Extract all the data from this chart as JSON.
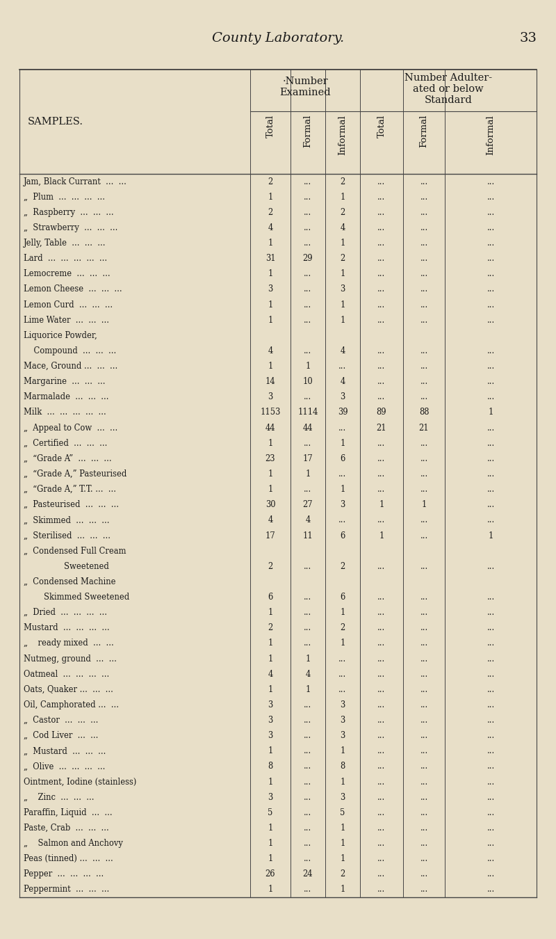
{
  "page_title": "County Laboratory.",
  "page_number": "33",
  "table_header": "SAMPLES.",
  "col_group1": "·Number\nExamined",
  "col_group2": "Number Adulter-\nated or below\nStandard",
  "col_headers": [
    "Total",
    "Formal",
    "Informal",
    "Total",
    "Formal",
    "Informal"
  ],
  "bg_color": "#e8dfc8",
  "rows": [
    [
      "Jam, Black Currant  ...  ...",
      "2",
      "...",
      "2",
      "...",
      "...",
      "..."
    ],
    [
      "„  Plum  ...  ...  ...  ...",
      "1",
      "...",
      "1",
      "...",
      "...",
      "..."
    ],
    [
      "„  Raspberry  ...  ...  ...",
      "2",
      "...",
      "2",
      "...",
      "...",
      "..."
    ],
    [
      "„  Strawberry  ...  ...  ...",
      "4",
      "...",
      "4",
      "...",
      "...",
      "..."
    ],
    [
      "Jelly, Table  ...  ...  ...",
      "1",
      "...",
      "1",
      "...",
      "...",
      "..."
    ],
    [
      "Lard  ...  ...  ...  ...  ...",
      "31",
      "29",
      "2",
      "...",
      "...",
      "..."
    ],
    [
      "Lemocreme  ...  ...  ...",
      "1",
      "...",
      "1",
      "...",
      "...",
      "..."
    ],
    [
      "Lemon Cheese  ...  ...  ...",
      "3",
      "...",
      "3",
      "...",
      "...",
      "..."
    ],
    [
      "Lemon Curd  ...  ...  ...",
      "1",
      "...",
      "1",
      "...",
      "...",
      "..."
    ],
    [
      "Lime Water  ...  ...  ...",
      "1",
      "...",
      "1",
      "...",
      "...",
      "..."
    ],
    [
      "Liquorice Powder,",
      "",
      "",
      "",
      "",
      "",
      ""
    ],
    [
      "    Compound  ...  ...  ...",
      "4",
      "...",
      "4",
      "...",
      "...",
      "..."
    ],
    [
      "Mace, Ground ...  ...  ...",
      "1",
      "1",
      "...",
      "...",
      "...",
      "..."
    ],
    [
      "Margarine  ...  ...  ...",
      "14",
      "10",
      "4",
      "...",
      "...",
      "..."
    ],
    [
      "Marmalade  ...  ...  ...",
      "3",
      "...",
      "3",
      "...",
      "...",
      "..."
    ],
    [
      "Milk  ...  ...  ...  ...  ...",
      "1153",
      "1114",
      "39",
      "89",
      "88",
      "1"
    ],
    [
      "„  Appeal to Cow  ...  ...",
      "44",
      "44",
      "...",
      "21",
      "21",
      "..."
    ],
    [
      "„  Certified  ...  ...  ...",
      "1",
      "...",
      "1",
      "...",
      "...",
      "..."
    ],
    [
      "„  “Grade A”  ...  ...  ...",
      "23",
      "17",
      "6",
      "...",
      "...",
      "..."
    ],
    [
      "„  “Grade A,” Pasteurised",
      "1",
      "1",
      "...",
      "...",
      "...",
      "..."
    ],
    [
      "„  “Grade A,” T.T. ...  ...",
      "1",
      "...",
      "1",
      "...",
      "...",
      "..."
    ],
    [
      "„  Pasteurised  ...  ...  ...",
      "30",
      "27",
      "3",
      "1",
      "1",
      "..."
    ],
    [
      "„  Skimmed  ...  ...  ...",
      "4",
      "4",
      "...",
      "...",
      "...",
      "..."
    ],
    [
      "„  Sterilised  ...  ...  ...",
      "17",
      "11",
      "6",
      "1",
      "...",
      "1"
    ],
    [
      "„  Condensed Full Cream",
      "",
      "",
      "",
      "",
      "",
      ""
    ],
    [
      "                Sweetened",
      "2",
      "...",
      "2",
      "...",
      "...",
      "..."
    ],
    [
      "„  Condensed Machine",
      "",
      "",
      "",
      "",
      "",
      ""
    ],
    [
      "        Skimmed Sweetened",
      "6",
      "...",
      "6",
      "...",
      "...",
      "..."
    ],
    [
      "„  Dried  ...  ...  ...  ...",
      "1",
      "...",
      "1",
      "...",
      "...",
      "..."
    ],
    [
      "Mustard  ...  ...  ...  ...",
      "2",
      "...",
      "2",
      "...",
      "...",
      "..."
    ],
    [
      "„    ready mixed  ...  ...",
      "1",
      "...",
      "1",
      "...",
      "...",
      "..."
    ],
    [
      "Nutmeg, ground  ...  ...",
      "1",
      "1",
      "...",
      "...",
      "...",
      "..."
    ],
    [
      "Oatmeal  ...  ...  ...  ...",
      "4",
      "4",
      "...",
      "...",
      "...",
      "..."
    ],
    [
      "Oats, Quaker ...  ...  ...",
      "1",
      "1",
      "...",
      "...",
      "...",
      "..."
    ],
    [
      "Oil, Camphorated ...  ...",
      "3",
      "...",
      "3",
      "...",
      "...",
      "..."
    ],
    [
      "„  Castor  ...  ...  ...",
      "3",
      "...",
      "3",
      "...",
      "...",
      "..."
    ],
    [
      "„  Cod Liver  ...  ...",
      "3",
      "...",
      "3",
      "...",
      "...",
      "..."
    ],
    [
      "„  Mustard  ...  ...  ...",
      "1",
      "...",
      "1",
      "...",
      "...",
      "..."
    ],
    [
      "„  Olive  ...  ...  ...  ...",
      "8",
      "...",
      "8",
      "...",
      "...",
      "..."
    ],
    [
      "Ointment, Iodine (stainless)",
      "1",
      "...",
      "1",
      "...",
      "...",
      "..."
    ],
    [
      "„    Zinc  ...  ...  ...",
      "3",
      "...",
      "3",
      "...",
      "...",
      "..."
    ],
    [
      "Paraffin, Liquid  ...  ...",
      "5",
      "...",
      "5",
      "...",
      "...",
      "..."
    ],
    [
      "Paste, Crab  ...  ...  ...",
      "1",
      "...",
      "1",
      "...",
      "...",
      "..."
    ],
    [
      "„    Salmon and Anchovy",
      "1",
      "...",
      "1",
      "...",
      "...",
      "..."
    ],
    [
      "Peas (tinned) ...  ...  ...",
      "1",
      "...",
      "1",
      "...",
      "...",
      "..."
    ],
    [
      "Pepper  ...  ...  ...  ...",
      "26",
      "24",
      "2",
      "...",
      "...",
      "..."
    ],
    [
      "Peppermint  ...  ...  ...",
      "1",
      "...",
      "1",
      "...",
      "...",
      "..."
    ]
  ]
}
